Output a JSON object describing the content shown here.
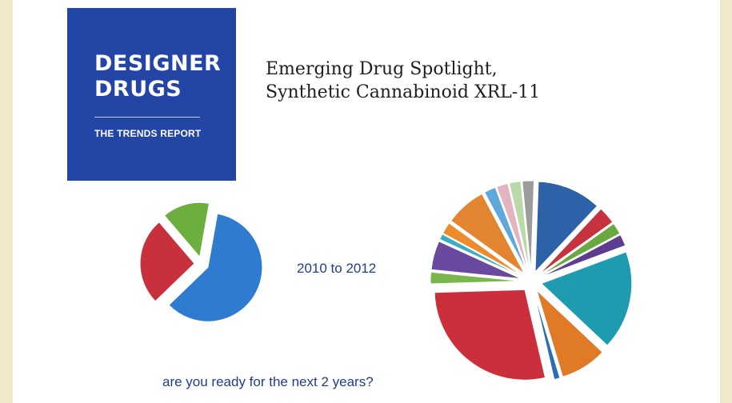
{
  "logo": {
    "line1": "DESIGNER",
    "line2": "DRUGS",
    "subtitle": "THE TRENDS REPORT"
  },
  "slide_title": {
    "line1": "Emerging Drug Spotlight,",
    "line2": "Synthetic Cannabinoid XRL-11"
  },
  "range_label": "2010 to 2012",
  "bottom_question": "are you ready for the next 2 years?",
  "chart_data": [
    {
      "type": "pie",
      "title": "",
      "categories": [
        "",
        "",
        ""
      ],
      "values": [
        60,
        26,
        14
      ],
      "colors": [
        "#2e7bd0",
        "#c8313b",
        "#6caf3e"
      ]
    },
    {
      "type": "pie",
      "title": "",
      "categories": [
        "",
        "",
        "",
        "",
        "",
        "",
        "",
        "",
        "",
        "",
        "",
        "",
        "",
        "",
        "",
        "",
        ""
      ],
      "values": [
        11,
        3,
        2,
        2,
        17,
        8,
        1,
        27,
        2,
        5,
        1,
        2,
        7,
        2,
        2,
        2,
        2
      ],
      "colors": [
        "#2e62a8",
        "#c7323f",
        "#6aa840",
        "#5e3d91",
        "#1f9bb0",
        "#e07a27",
        "#2a6fb5",
        "#cb2f3c",
        "#79b64c",
        "#6a4aa0",
        "#3cacc2",
        "#ee8b2a",
        "#e38530",
        "#5fa8dd",
        "#e2b4c0",
        "#b9d9a6",
        "#9c9c9c"
      ]
    }
  ]
}
